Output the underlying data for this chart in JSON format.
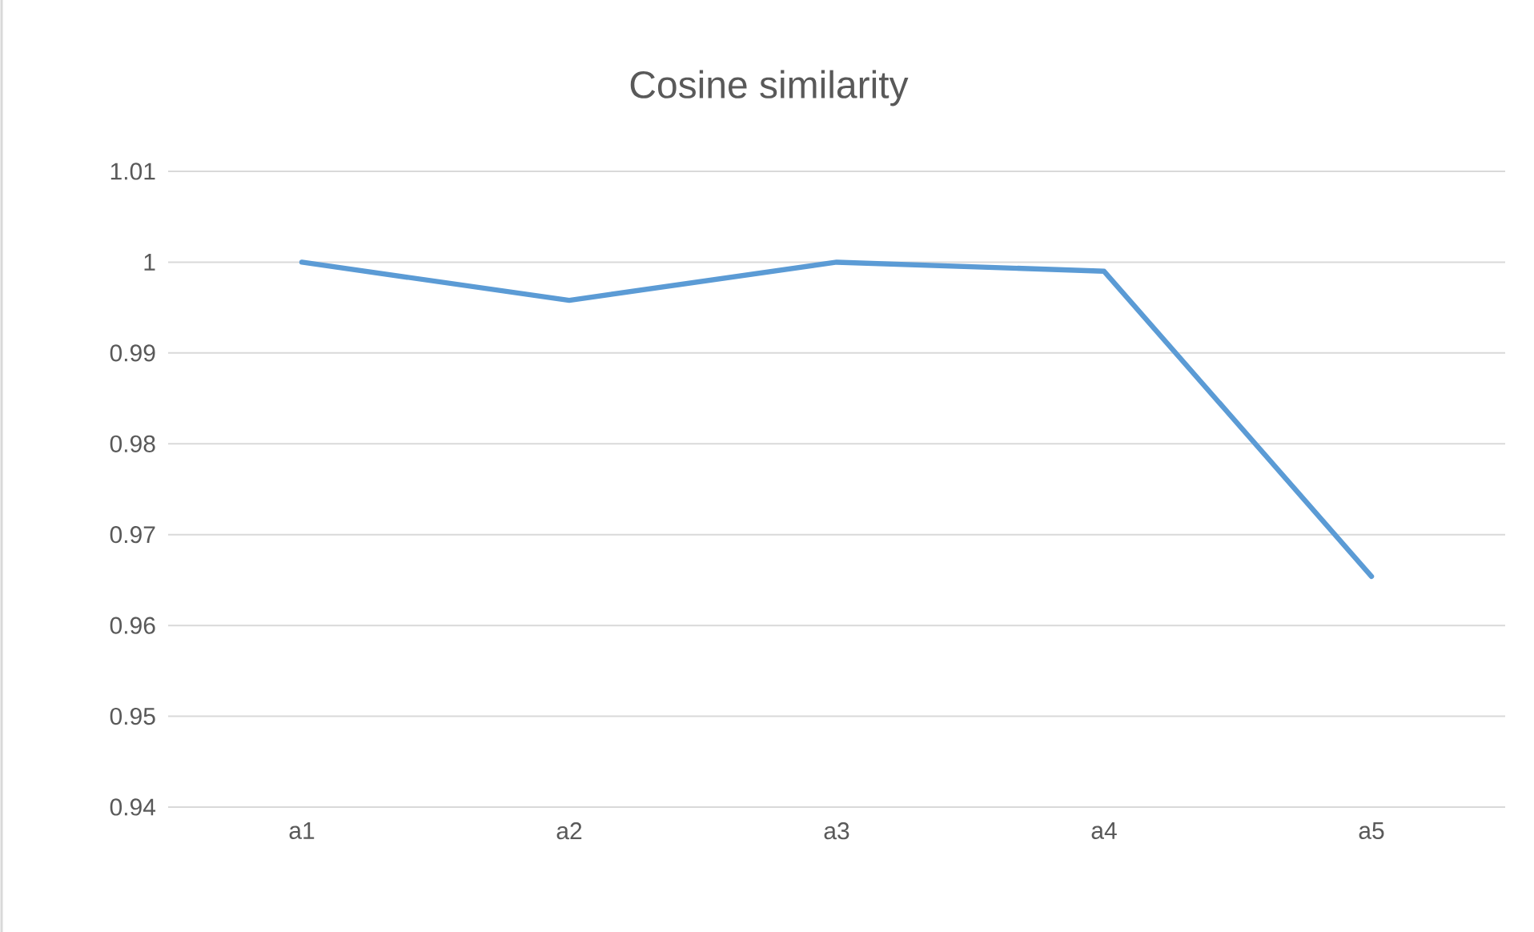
{
  "chart_data": {
    "type": "line",
    "title": "Cosine similarity",
    "categories": [
      "a1",
      "a2",
      "a3",
      "a4",
      "a5"
    ],
    "series": [
      {
        "color": "#5b9bd5",
        "values": [
          1.0,
          0.9958,
          1.0,
          0.999,
          0.9654
        ]
      }
    ],
    "ylim": [
      0.94,
      1.01
    ],
    "yticks": [
      0.94,
      0.95,
      0.96,
      0.97,
      0.98,
      0.99,
      1,
      1.01
    ],
    "grid": "y",
    "legend": false,
    "marker": "none",
    "line_style": "solid"
  }
}
